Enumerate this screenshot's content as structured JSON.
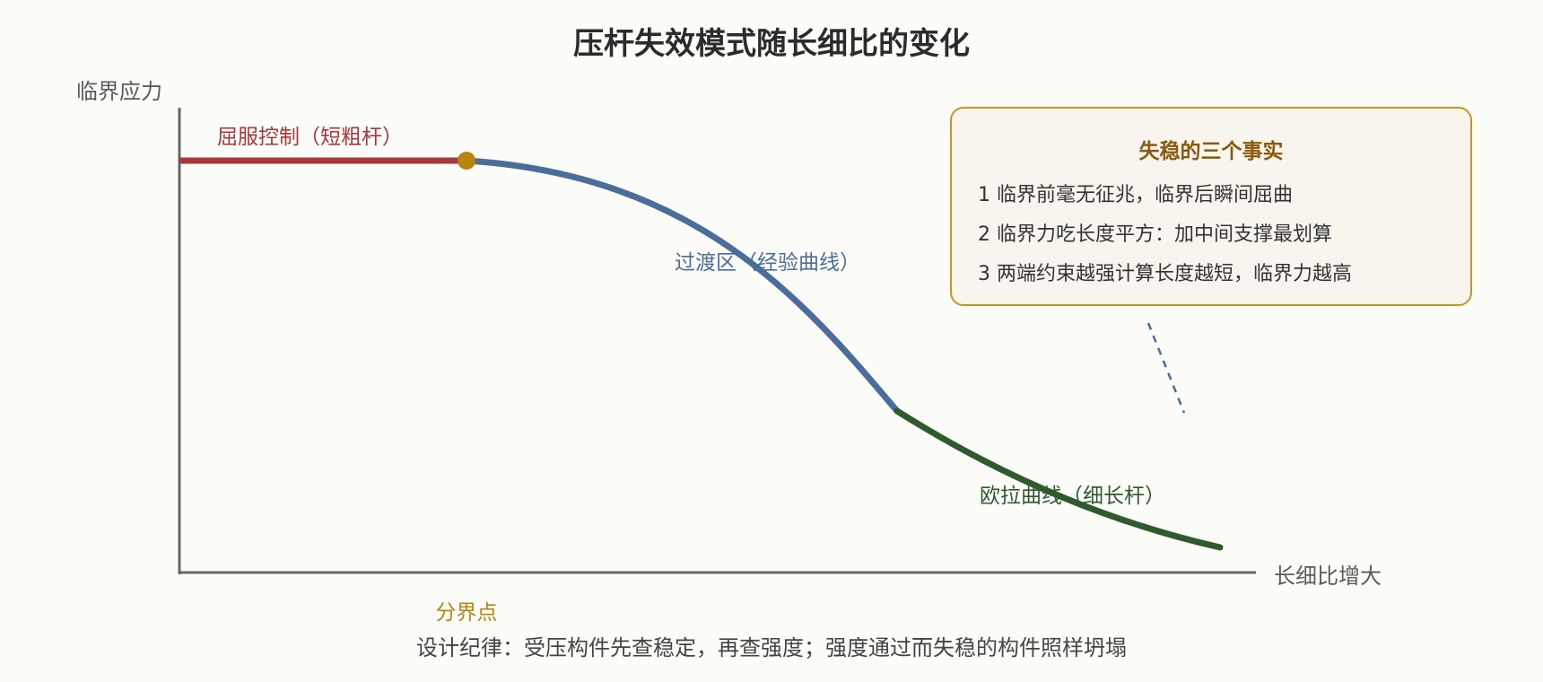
{
  "title": "压杆失效模式随长细比的变化",
  "axes": {
    "y_label": "临界应力",
    "x_label": "长细比增大"
  },
  "segments": {
    "yield": {
      "label": "屈服控制（短粗杆）",
      "color": "#a6373a"
    },
    "transition": {
      "label": "过渡区（经验曲线）",
      "color": "#4a6d9c"
    },
    "euler": {
      "label": "欧拉曲线（细长杆）",
      "color": "#2e5a2e"
    }
  },
  "boundary": {
    "label": "分界点",
    "color": "#b8860b"
  },
  "notes": {
    "title": "失稳的三个事实",
    "items": [
      "1 临界前毫无征兆，临界后瞬间屈曲",
      "2 临界力吃长度平方：加中间支撑最划算",
      "3 两端约束越强计算长度越短，临界力越高"
    ],
    "border_color": "#c8961e",
    "fill_color": "#f8f4ee"
  },
  "footer": "设计纪律：受压构件先查稳定，再查强度；强度通过而失稳的构件照样坍塌"
}
